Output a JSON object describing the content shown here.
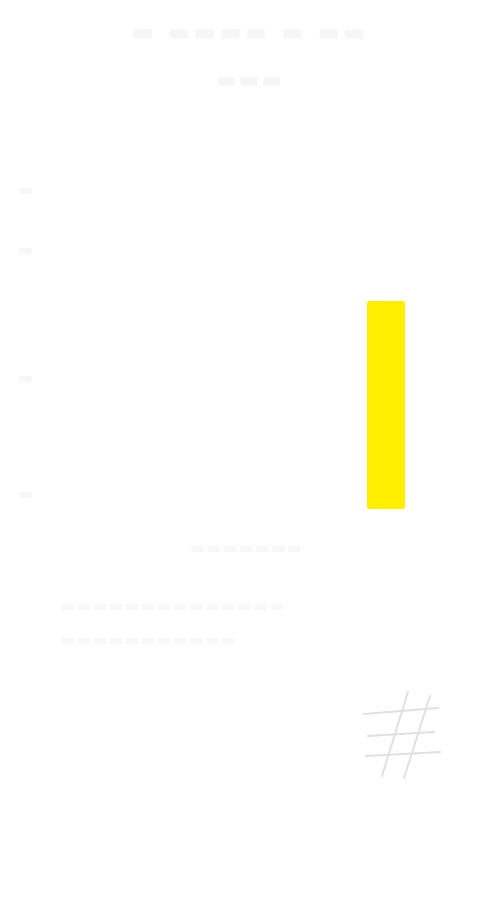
{
  "colors": {
    "background": "#ffffff",
    "indicator": "#ffee00",
    "faint_text": "#f6f6f6",
    "mark": "#e2e2e2"
  },
  "icons": {
    "indicator": "level-indicator-bar",
    "corner": "crossed-lines-icon"
  }
}
